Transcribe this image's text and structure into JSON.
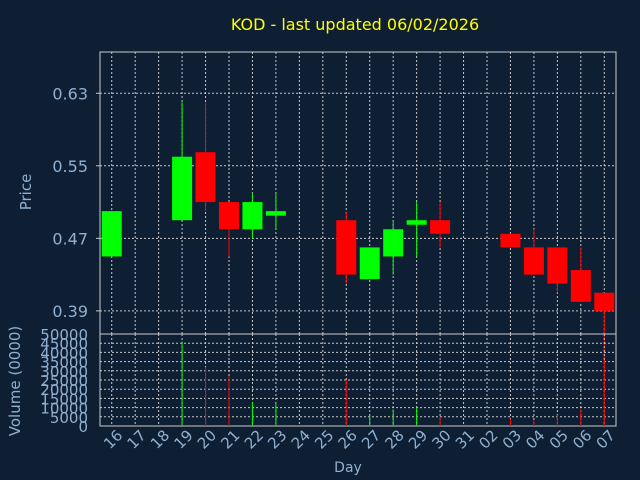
{
  "title": "KOD - last updated 06/02/2026",
  "colors": {
    "background": "#0f1f33",
    "panel_border": "#c8c8c8",
    "grid": "#c8c8c8",
    "title": "#ffff00",
    "axis_text": "#8fb0d0",
    "up": "#00ff00",
    "down": "#ff0000"
  },
  "chart_data": [
    {
      "type": "candlestick",
      "ylabel": "Price",
      "ylim": [
        0.3645,
        0.6755
      ],
      "yticks": [
        0.63,
        0.55,
        0.47,
        0.39
      ],
      "ytick_labels": [
        "0.63",
        "0.55",
        "0.47",
        "0.39"
      ],
      "x_index_range": [
        -0.5,
        21.5
      ],
      "grid": true,
      "candles": [
        {
          "x": 0,
          "open": 0.45,
          "high": 0.5,
          "low": 0.45,
          "close": 0.5
        },
        {
          "x": 3,
          "open": 0.49,
          "high": 0.62,
          "low": 0.49,
          "close": 0.56
        },
        {
          "x": 4,
          "open": 0.565,
          "high": 0.62,
          "low": 0.5,
          "close": 0.51
        },
        {
          "x": 5,
          "open": 0.51,
          "high": 0.51,
          "low": 0.45,
          "close": 0.48
        },
        {
          "x": 6,
          "open": 0.48,
          "high": 0.52,
          "low": 0.47,
          "close": 0.51
        },
        {
          "x": 7,
          "open": 0.495,
          "high": 0.52,
          "low": 0.48,
          "close": 0.5
        },
        {
          "x": 10,
          "open": 0.49,
          "high": 0.5,
          "low": 0.42,
          "close": 0.43
        },
        {
          "x": 11,
          "open": 0.425,
          "high": 0.46,
          "low": 0.425,
          "close": 0.46
        },
        {
          "x": 12,
          "open": 0.45,
          "high": 0.49,
          "low": 0.43,
          "close": 0.48
        },
        {
          "x": 13,
          "open": 0.485,
          "high": 0.51,
          "low": 0.45,
          "close": 0.49
        },
        {
          "x": 14,
          "open": 0.49,
          "high": 0.51,
          "low": 0.46,
          "close": 0.475
        },
        {
          "x": 17,
          "open": 0.475,
          "high": 0.475,
          "low": 0.46,
          "close": 0.46
        },
        {
          "x": 18,
          "open": 0.46,
          "high": 0.48,
          "low": 0.43,
          "close": 0.43
        },
        {
          "x": 19,
          "open": 0.46,
          "high": 0.46,
          "low": 0.41,
          "close": 0.42
        },
        {
          "x": 20,
          "open": 0.435,
          "high": 0.46,
          "low": 0.4,
          "close": 0.4
        },
        {
          "x": 21,
          "open": 0.41,
          "high": 0.41,
          "low": 0.33,
          "close": 0.39
        }
      ]
    },
    {
      "type": "bar",
      "xlabel": "Day",
      "ylabel": "Volume (0000)",
      "ylim": [
        0,
        50000
      ],
      "yticks": [
        0,
        5000,
        10000,
        15000,
        20000,
        25000,
        30000,
        35000,
        40000,
        45000,
        50000
      ],
      "ytick_labels": [
        "0",
        "5000",
        "10000",
        "15000",
        "20000",
        "25000",
        "30000",
        "35000",
        "40000",
        "45000",
        "50000"
      ],
      "categories": [
        "16",
        "17",
        "18",
        "19",
        "20",
        "21",
        "22",
        "23",
        "24",
        "25",
        "26",
        "27",
        "28",
        "29",
        "30",
        "31",
        "02",
        "03",
        "04",
        "05",
        "06",
        "07"
      ],
      "grid": true,
      "bars": [
        {
          "x": 3,
          "value": 46000,
          "dir": "up"
        },
        {
          "x": 4,
          "value": 32000,
          "dir": "down"
        },
        {
          "x": 5,
          "value": 27000,
          "dir": "down"
        },
        {
          "x": 6,
          "value": 13000,
          "dir": "up"
        },
        {
          "x": 7,
          "value": 12000,
          "dir": "up"
        },
        {
          "x": 10,
          "value": 25000,
          "dir": "down"
        },
        {
          "x": 11,
          "value": 6000,
          "dir": "up"
        },
        {
          "x": 12,
          "value": 9000,
          "dir": "up"
        },
        {
          "x": 13,
          "value": 10000,
          "dir": "up"
        },
        {
          "x": 14,
          "value": 5000,
          "dir": "down"
        },
        {
          "x": 17,
          "value": 4000,
          "dir": "down"
        },
        {
          "x": 18,
          "value": 3000,
          "dir": "down"
        },
        {
          "x": 19,
          "value": 6000,
          "dir": "down"
        },
        {
          "x": 20,
          "value": 9000,
          "dir": "down"
        },
        {
          "x": 21,
          "value": 36000,
          "dir": "down"
        }
      ]
    }
  ]
}
